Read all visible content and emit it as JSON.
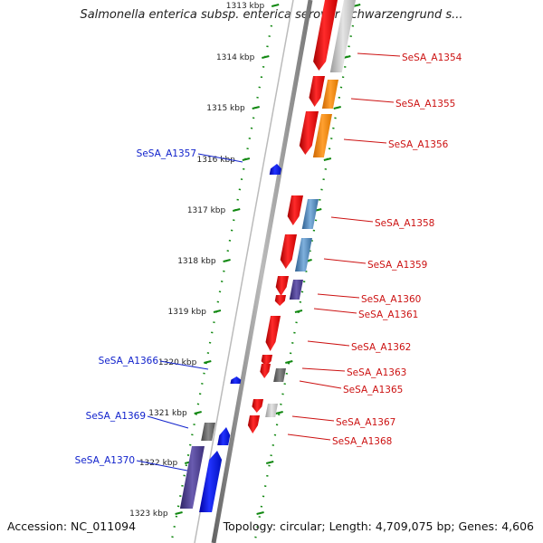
{
  "title": "Salmonella enterica subsp. enterica serovar Schwarzengrund s...",
  "accession": "Accession: NC_011094",
  "topology": "Topology: circular; Length: 4,709,075 bp; Genes: 4,606",
  "ticks": [
    "1313 kbp",
    "1314 kbp",
    "1315 kbp",
    "1316 kbp",
    "1317 kbp",
    "1318 kbp",
    "1319 kbp",
    "1320 kbp",
    "1321 kbp",
    "1322 kbp",
    "1323 kbp"
  ],
  "genes_right": [
    "SeSA_A1354",
    "SeSA_A1355",
    "SeSA_A1356",
    "SeSA_A1358",
    "SeSA_A1359",
    "SeSA_A1360",
    "SeSA_A1361",
    "SeSA_A1362",
    "SeSA_A1363",
    "SeSA_A1365",
    "SeSA_A1367",
    "SeSA_A1368"
  ],
  "genes_left": [
    "SeSA_A1357",
    "SeSA_A1366",
    "SeSA_A1369",
    "SeSA_A1370"
  ],
  "colors": {
    "forward_gene": "#ee1111",
    "reverse_gene": "#1133ee",
    "right_label": "#cc1111",
    "left_label": "#1122cc",
    "tick": "#118811",
    "cog_orange": "#ff8800",
    "cog_steelblue": "#4682b4",
    "cog_purple": "#4b3c8c",
    "cog_gray": "#888888"
  }
}
